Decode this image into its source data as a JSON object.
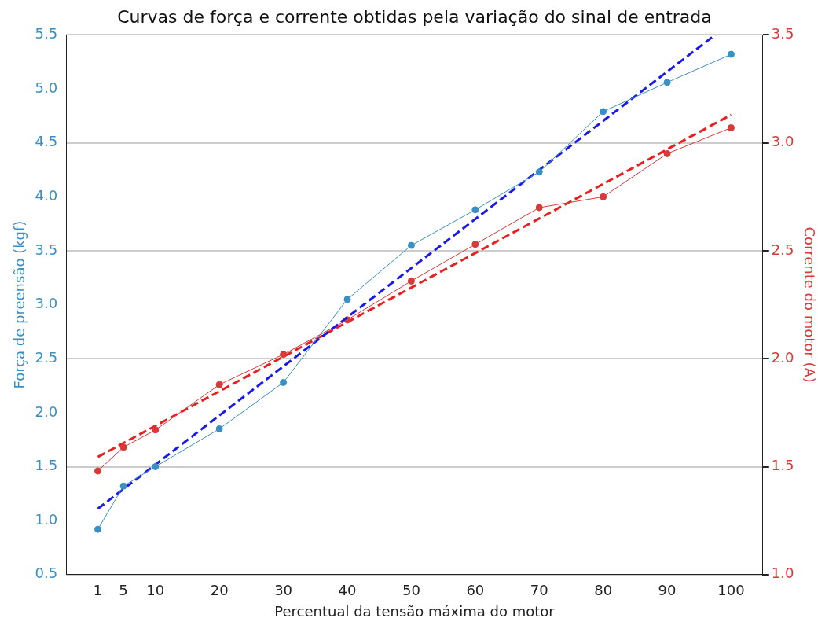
{
  "chart_data": {
    "type": "line",
    "title": "Curvas de força e corrente obtidas pela variação do sinal de entrada",
    "xlabel": "Percentual da tensão máxima do motor",
    "ylabel": "Força de preensão (kgf)",
    "y2label": "Corrente do motor (A)",
    "xlim": [
      -3.95,
      104.95
    ],
    "xticks": [
      1,
      5,
      10,
      20,
      30,
      40,
      50,
      60,
      70,
      80,
      90,
      100
    ],
    "ylim": [
      0.5,
      5.5
    ],
    "yticks": [
      0.5,
      {
        "value": 1,
        "label": "1.0"
      },
      1.5,
      {
        "value": 2,
        "label": "2.0"
      },
      2.5,
      {
        "value": 3,
        "label": "3.0"
      },
      3.5,
      {
        "value": 4,
        "label": "4.0"
      },
      4.5,
      {
        "value": 5,
        "label": "5.0"
      },
      5.5
    ],
    "y2lim": [
      1.0,
      3.5
    ],
    "y2ticks": [
      {
        "value": 1,
        "label": "1.0"
      },
      1.5,
      {
        "value": 2,
        "label": "2.0"
      },
      2.5,
      {
        "value": 3,
        "label": "3.0"
      },
      3.5
    ],
    "grid": "y",
    "legend": false,
    "series": [
      {
        "color": "#3a8fc4",
        "marker": "circle",
        "line_style": "solid",
        "x": [
          1,
          5,
          10,
          20,
          30,
          40,
          50,
          60,
          70,
          80,
          90,
          100
        ],
        "values": [
          0.92,
          1.32,
          1.5,
          1.85,
          2.28,
          3.05,
          3.55,
          3.88,
          4.23,
          4.79,
          5.06,
          5.32
        ]
      },
      {
        "color": "#1a1aee",
        "marker": "none",
        "line_style": "dashed",
        "x": [
          1,
          97.5
        ],
        "values": [
          1.11,
          5.5
        ]
      },
      {
        "color": "#d83a3a",
        "marker": "circle",
        "line_style": "solid",
        "axis": "y2",
        "x": [
          1,
          5,
          10,
          20,
          30,
          40,
          50,
          60,
          70,
          80,
          90,
          100
        ],
        "values": [
          1.48,
          1.59,
          1.67,
          1.88,
          2.02,
          2.18,
          2.36,
          2.53,
          2.7,
          2.75,
          2.95,
          3.07
        ]
      },
      {
        "color": "#e82020",
        "marker": "none",
        "line_style": "dashed",
        "axis": "y2",
        "x": [
          1,
          100
        ],
        "values": [
          1.545,
          3.13
        ]
      }
    ]
  }
}
